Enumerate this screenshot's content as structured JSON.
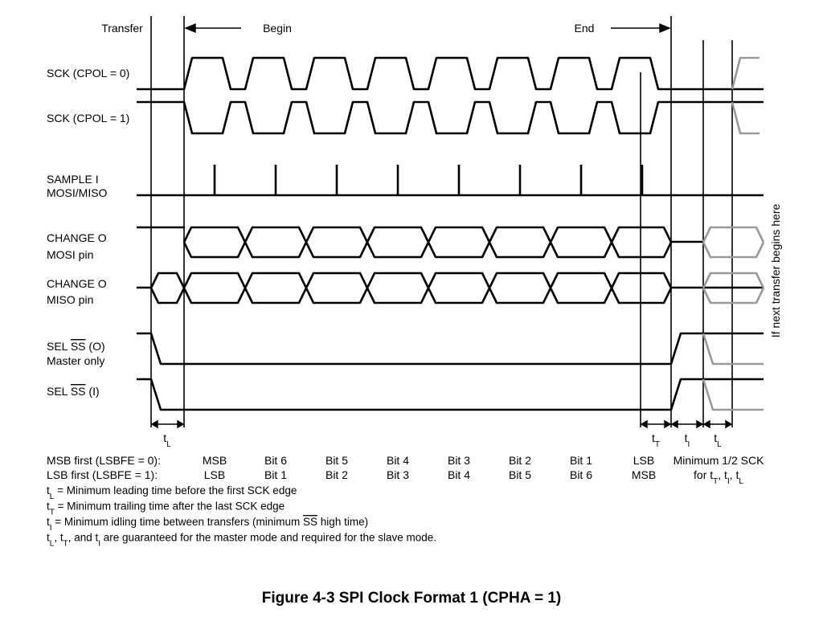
{
  "header": {
    "transfer": "Transfer",
    "begin": "Begin",
    "end": "End"
  },
  "signals": [
    [
      [
        {
          "text": "SCK (CPOL = 0)"
        }
      ]
    ],
    [
      [
        {
          "text": "SCK (CPOL = 1)"
        }
      ]
    ],
    [
      [
        {
          "text": "SAMPLE I"
        }
      ],
      [
        {
          "text": "MOSI/MISO"
        }
      ]
    ],
    [
      [
        {
          "text": "CHANGE O"
        }
      ],
      [
        {
          "text": "MOSI pin"
        }
      ]
    ],
    [
      [
        {
          "text": "CHANGE O"
        }
      ],
      [
        {
          "text": "MISO pin"
        }
      ]
    ],
    [
      [
        {
          "text": "SEL "
        },
        {
          "text": "SS",
          "style": "over"
        },
        {
          "text": " (O)"
        }
      ],
      [
        {
          "text": "Master only"
        }
      ]
    ],
    [
      [
        {
          "text": "SEL "
        },
        {
          "text": "SS",
          "style": "over"
        },
        {
          "text": " (I)"
        }
      ]
    ]
  ],
  "timings": [
    [
      {
        "text": "t"
      },
      {
        "text": "L",
        "style": "sub"
      }
    ],
    [
      {
        "text": "t"
      },
      {
        "text": "T",
        "style": "sub"
      }
    ],
    [
      {
        "text": "t"
      },
      {
        "text": "I",
        "style": "sub"
      }
    ],
    [
      {
        "text": "t"
      },
      {
        "text": "L",
        "style": "sub"
      }
    ]
  ],
  "bit_table": {
    "rows": [
      {
        "label": "MSB first (LSBFE = 0):",
        "cells": [
          "MSB",
          "Bit 6",
          "Bit 5",
          "Bit 4",
          "Bit 3",
          "Bit 2",
          "Bit 1",
          "LSB"
        ]
      },
      {
        "label": "LSB first (LSBFE = 1):",
        "cells": [
          "LSB",
          "Bit 1",
          "Bit 2",
          "Bit 3",
          "Bit 4",
          "Bit 5",
          "Bit 6",
          "MSB"
        ]
      }
    ],
    "note": [
      [
        {
          "text": "Minimum 1/2 SCK"
        }
      ],
      [
        {
          "text": "for t"
        },
        {
          "text": "T",
          "style": "sub"
        },
        {
          "text": ", t"
        },
        {
          "text": "I",
          "style": "sub"
        },
        {
          "text": ", t"
        },
        {
          "text": "L",
          "style": "sub"
        }
      ]
    ]
  },
  "notes": [
    [
      {
        "text": "t"
      },
      {
        "text": "L",
        "style": "sub"
      },
      {
        "text": " = Minimum leading time before the first SCK edge"
      }
    ],
    [
      {
        "text": "t"
      },
      {
        "text": "T",
        "style": "sub"
      },
      {
        "text": " = Minimum trailing time after the last SCK edge"
      }
    ],
    [
      {
        "text": "t"
      },
      {
        "text": "I",
        "style": "sub"
      },
      {
        "text": " = Minimum idling time between transfers (minimum "
      },
      {
        "text": "SS",
        "style": "over"
      },
      {
        "text": " high time)"
      }
    ],
    [
      {
        "text": "t"
      },
      {
        "text": "L",
        "style": "sub"
      },
      {
        "text": ", t"
      },
      {
        "text": "T",
        "style": "sub"
      },
      {
        "text": ", and t"
      },
      {
        "text": "I",
        "style": "sub"
      },
      {
        "text": " are guaranteed for the master mode and required for the slave mode."
      }
    ]
  ],
  "side_note": "If next transfer begins here",
  "caption": "Figure 4-3  SPI Clock Format 1 (CPHA = 1)"
}
